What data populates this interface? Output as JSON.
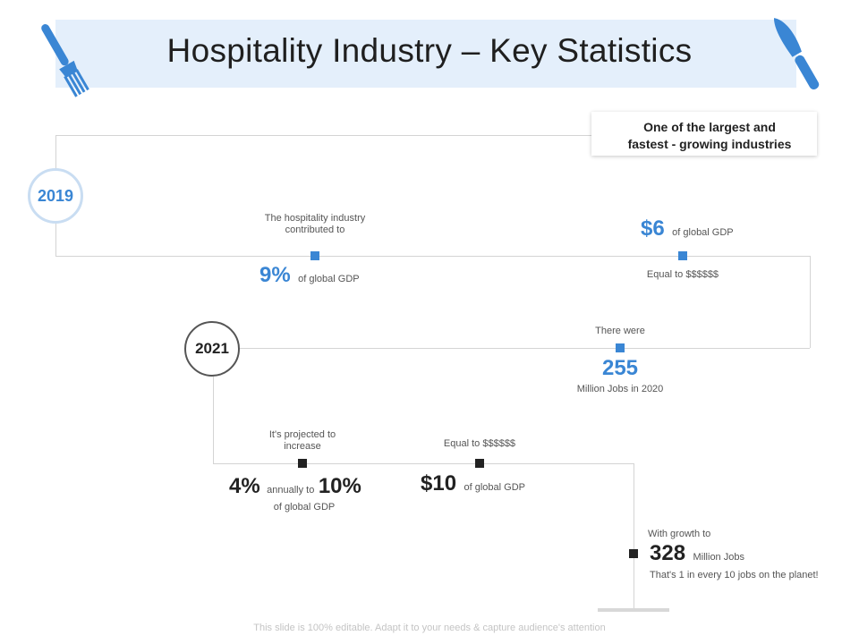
{
  "header": {
    "title": "Hospitality Industry – Key Statistics",
    "accent_color": "#3a86d4",
    "banner_color": "#e4effb",
    "icons": [
      "fork-icon",
      "knife-icon"
    ]
  },
  "callout": {
    "line1": "One of the largest and",
    "line2": "fastest  - growing industries"
  },
  "timeline": {
    "year_2019": "2019",
    "year_2021": "2021",
    "stat_contrib": {
      "text": "The hospitality industry contributed to",
      "value": "9%",
      "suffix": "of global GDP"
    },
    "stat_6": {
      "value": "$6",
      "suffix": "of global GDP",
      "note": "Equal to $$$$$$"
    },
    "stat_jobs": {
      "label": "There were",
      "value": "255",
      "suffix": "Million Jobs in 2020"
    },
    "stat_projected": {
      "label": "It's projected to increase",
      "value1": "4%",
      "mid": "annually to",
      "value2": "10%",
      "suffix": "of global GDP"
    },
    "stat_10": {
      "label": "Equal to $$$$$$",
      "value": "$10",
      "suffix": "of global GDP"
    },
    "stat_growth": {
      "label": "With growth to",
      "value": "328",
      "unit": "Million Jobs",
      "note": "That's 1 in every 10 jobs on the planet!"
    }
  },
  "footer": {
    "text": "This slide is 100% editable. Adapt it to your needs & capture audience's attention"
  }
}
